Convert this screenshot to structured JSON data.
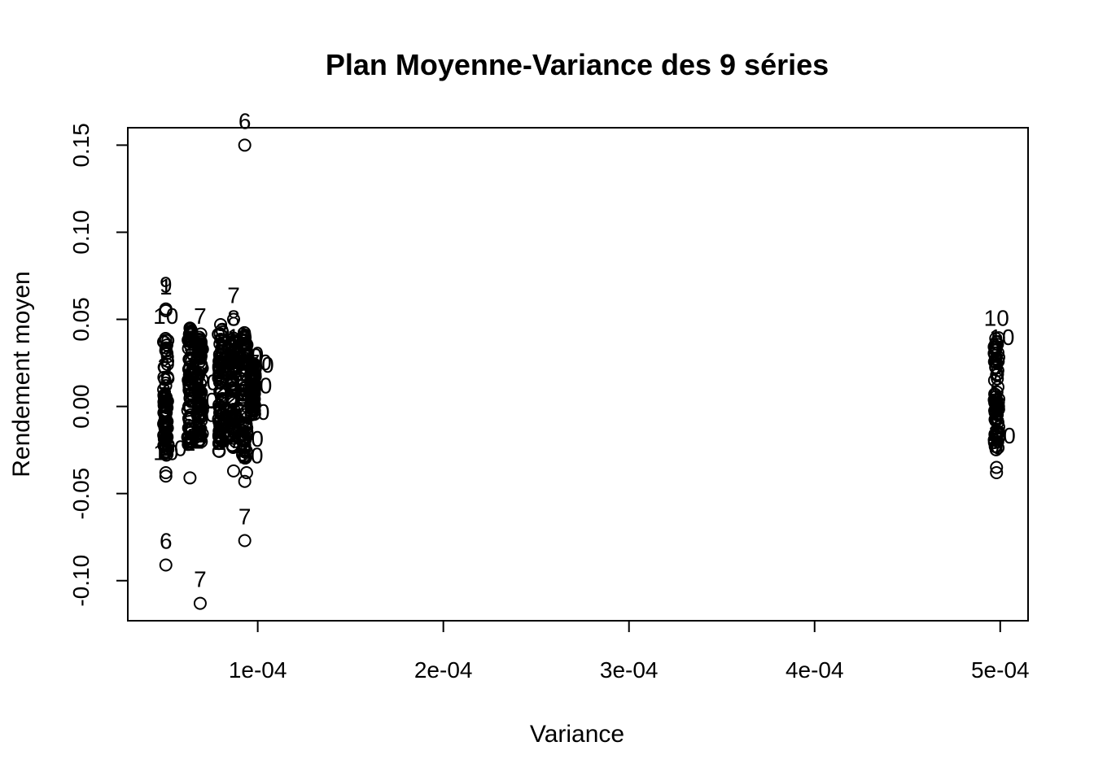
{
  "chart_data": {
    "type": "scatter",
    "title": "Plan Moyenne-Variance des 9 séries",
    "xlabel": "Variance",
    "ylabel": "Rendement moyen",
    "xlim": [
      3e-05,
      0.000515
    ],
    "ylim": [
      -0.123,
      0.16
    ],
    "x_ticks": [
      0.0001,
      0.0002,
      0.0003,
      0.0004,
      0.0005
    ],
    "x_tick_labels": [
      "1e-04",
      "2e-04",
      "3e-04",
      "4e-04",
      "5e-04"
    ],
    "y_ticks": [
      0.15,
      0.1,
      0.05,
      0.0,
      -0.05,
      -0.1
    ],
    "y_tick_labels": [
      "0.15",
      "0.10",
      "0.05",
      "0.00",
      "-0.05",
      "-0.10"
    ],
    "grid": false,
    "legend": "none",
    "clusters": [
      {
        "x": 5.05e-05,
        "y_min": -0.028,
        "y_max": 0.04
      },
      {
        "x": 6.35e-05,
        "y_min": -0.024,
        "y_max": 0.045
      },
      {
        "x": 6.9e-05,
        "y_min": -0.021,
        "y_max": 0.043
      },
      {
        "x": 8e-05,
        "y_min": -0.026,
        "y_max": 0.045
      },
      {
        "x": 8.7e-05,
        "y_min": -0.024,
        "y_max": 0.04
      },
      {
        "x": 9.3e-05,
        "y_min": -0.03,
        "y_max": 0.043
      },
      {
        "x": 9.75e-05,
        "y_min": -0.005,
        "y_max": 0.025
      },
      {
        "x": 0.000498,
        "y_min": -0.025,
        "y_max": 0.04
      }
    ],
    "labeled_points": [
      {
        "x": 5.05e-05,
        "y": 0.056,
        "label": "9"
      },
      {
        "x": 5.05e-05,
        "y": 0.055,
        "label": "1"
      },
      {
        "x": 5.05e-05,
        "y": -0.091,
        "label": "6"
      },
      {
        "x": 5.05e-05,
        "y": -0.04,
        "label": "10"
      },
      {
        "x": 5.05e-05,
        "y": 0.038,
        "label": "10"
      },
      {
        "x": 6.9e-05,
        "y": -0.113,
        "label": "7"
      },
      {
        "x": 6.9e-05,
        "y": 0.038,
        "label": "7"
      },
      {
        "x": 9.3e-05,
        "y": -0.077,
        "label": "7"
      },
      {
        "x": 8.7e-05,
        "y": 0.05,
        "label": "7"
      },
      {
        "x": 8.7e-05,
        "y": 0.037,
        "label": "8"
      },
      {
        "x": 9.3e-05,
        "y": 0.15,
        "label": "6"
      },
      {
        "x": 0.000498,
        "y": 0.037,
        "label": "10"
      }
    ],
    "outlier_points": [
      {
        "x": 6.35e-05,
        "y": -0.041
      },
      {
        "x": 5.05e-05,
        "y": -0.038
      },
      {
        "x": 8.7e-05,
        "y": -0.037
      },
      {
        "x": 9.3e-05,
        "y": -0.043
      },
      {
        "x": 9.4e-05,
        "y": -0.038
      },
      {
        "x": 0.000498,
        "y": -0.038
      },
      {
        "x": 0.000498,
        "y": -0.035
      },
      {
        "x": 6.35e-05,
        "y": 0.045
      },
      {
        "x": 8e-05,
        "y": 0.047
      }
    ]
  }
}
